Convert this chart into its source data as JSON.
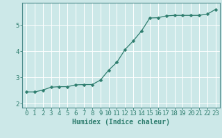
{
  "x": [
    0,
    1,
    2,
    3,
    4,
    5,
    6,
    7,
    8,
    9,
    10,
    11,
    12,
    13,
    14,
    15,
    16,
    17,
    18,
    19,
    20,
    21,
    22,
    23
  ],
  "y": [
    2.45,
    2.45,
    2.52,
    2.63,
    2.65,
    2.65,
    2.72,
    2.73,
    2.73,
    2.9,
    3.28,
    3.58,
    4.07,
    4.4,
    4.78,
    5.27,
    5.28,
    5.35,
    5.37,
    5.37,
    5.37,
    5.37,
    5.42,
    5.6
  ],
  "line_color": "#2e7d6e",
  "marker": "D",
  "marker_size": 2.5,
  "bg_color": "#cce8e8",
  "grid_color": "#ffffff",
  "xlabel": "Humidex (Indice chaleur)",
  "xlim": [
    -0.5,
    23.5
  ],
  "ylim": [
    1.85,
    5.85
  ],
  "yticks": [
    2,
    3,
    4,
    5
  ],
  "xticks": [
    0,
    1,
    2,
    3,
    4,
    5,
    6,
    7,
    8,
    9,
    10,
    11,
    12,
    13,
    14,
    15,
    16,
    17,
    18,
    19,
    20,
    21,
    22,
    23
  ],
  "label_fontsize": 7,
  "tick_fontsize": 6.5
}
